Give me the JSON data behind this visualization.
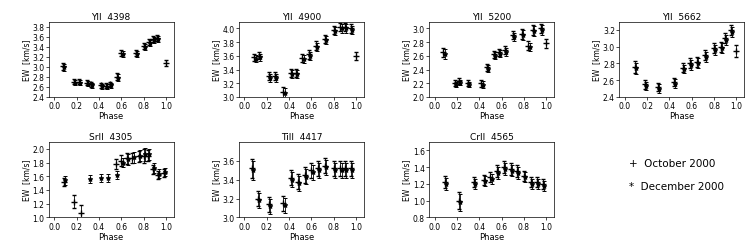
{
  "panels": [
    {
      "title": "YII  4398",
      "ylim": [
        2.4,
        3.9
      ],
      "yticks": [
        2.4,
        2.6,
        2.8,
        3.0,
        3.2,
        3.4,
        3.6,
        3.8
      ],
      "oct_phase": [
        0.08,
        0.18,
        0.22,
        0.29,
        0.33,
        0.42,
        0.46,
        0.5,
        0.56,
        0.6,
        0.73,
        0.8,
        0.85,
        0.88,
        0.92,
        1.0
      ],
      "oct_ew": [
        3.01,
        2.7,
        2.7,
        2.68,
        2.65,
        2.63,
        2.62,
        2.65,
        2.8,
        3.28,
        3.28,
        3.42,
        3.5,
        3.55,
        3.58,
        3.08
      ],
      "oct_err": [
        0.07,
        0.05,
        0.05,
        0.05,
        0.05,
        0.05,
        0.05,
        0.05,
        0.07,
        0.06,
        0.06,
        0.06,
        0.06,
        0.06,
        0.06,
        0.06
      ],
      "dec_phase": [
        0.09,
        0.19,
        0.23,
        0.3,
        0.34,
        0.43,
        0.47,
        0.51,
        0.57,
        0.62,
        0.74,
        0.81,
        0.86,
        0.89,
        0.93
      ],
      "dec_ew": [
        2.99,
        2.68,
        2.68,
        2.66,
        2.63,
        2.61,
        2.6,
        2.63,
        2.78,
        3.25,
        3.25,
        3.4,
        3.48,
        3.53,
        3.56
      ],
      "dec_err": [
        0.07,
        0.05,
        0.05,
        0.05,
        0.05,
        0.05,
        0.05,
        0.05,
        0.07,
        0.06,
        0.06,
        0.06,
        0.06,
        0.06,
        0.06
      ]
    },
    {
      "title": "YII  4900",
      "ylim": [
        3.0,
        4.1
      ],
      "yticks": [
        3.0,
        3.2,
        3.4,
        3.6,
        3.8,
        4.0
      ],
      "oct_phase": [
        0.09,
        0.13,
        0.22,
        0.27,
        0.35,
        0.42,
        0.46,
        0.52,
        0.58,
        0.64,
        0.72,
        0.8,
        0.86,
        0.9,
        0.95,
        1.0
      ],
      "oct_ew": [
        3.58,
        3.6,
        3.3,
        3.3,
        3.07,
        3.35,
        3.35,
        3.57,
        3.62,
        3.75,
        3.85,
        3.98,
        4.02,
        4.02,
        4.0,
        3.6
      ],
      "oct_err": [
        0.05,
        0.05,
        0.06,
        0.06,
        0.08,
        0.06,
        0.06,
        0.06,
        0.06,
        0.06,
        0.06,
        0.06,
        0.06,
        0.06,
        0.06,
        0.06
      ],
      "dec_phase": [
        0.1,
        0.14,
        0.23,
        0.28,
        0.36,
        0.43,
        0.47,
        0.53,
        0.59,
        0.65,
        0.73,
        0.81,
        0.87,
        0.91,
        0.96
      ],
      "dec_ew": [
        3.56,
        3.58,
        3.28,
        3.28,
        3.05,
        3.33,
        3.33,
        3.55,
        3.6,
        3.73,
        3.83,
        3.96,
        4.0,
        4.0,
        3.98
      ],
      "dec_err": [
        0.05,
        0.05,
        0.06,
        0.06,
        0.08,
        0.06,
        0.06,
        0.06,
        0.06,
        0.06,
        0.06,
        0.06,
        0.06,
        0.06,
        0.06
      ]
    },
    {
      "title": "YII  5200",
      "ylim": [
        2.0,
        3.1
      ],
      "yticks": [
        2.0,
        2.2,
        2.4,
        2.6,
        2.8,
        3.0
      ],
      "oct_phase": [
        0.08,
        0.18,
        0.22,
        0.3,
        0.42,
        0.47,
        0.53,
        0.58,
        0.63,
        0.7,
        0.78,
        0.84,
        0.88,
        0.95,
        1.0
      ],
      "oct_ew": [
        2.65,
        2.2,
        2.23,
        2.2,
        2.2,
        2.43,
        2.62,
        2.65,
        2.68,
        2.9,
        2.92,
        2.75,
        2.98,
        3.0,
        2.78
      ],
      "oct_err": [
        0.07,
        0.04,
        0.04,
        0.04,
        0.05,
        0.05,
        0.05,
        0.05,
        0.06,
        0.06,
        0.07,
        0.06,
        0.07,
        0.07,
        0.06
      ],
      "dec_phase": [
        0.09,
        0.19,
        0.23,
        0.31,
        0.43,
        0.48,
        0.54,
        0.59,
        0.64,
        0.71,
        0.79,
        0.85,
        0.89,
        0.96
      ],
      "dec_ew": [
        2.63,
        2.18,
        2.21,
        2.18,
        2.18,
        2.41,
        2.6,
        2.63,
        2.66,
        2.88,
        2.9,
        2.73,
        2.96,
        2.98
      ],
      "dec_err": [
        0.07,
        0.04,
        0.04,
        0.04,
        0.05,
        0.05,
        0.05,
        0.05,
        0.06,
        0.06,
        0.07,
        0.06,
        0.07,
        0.07
      ]
    },
    {
      "title": "YII  5662",
      "ylim": [
        2.4,
        3.3
      ],
      "yticks": [
        2.4,
        2.6,
        2.8,
        3.0,
        3.2
      ],
      "oct_phase": [
        0.09,
        0.18,
        0.3,
        0.44,
        0.52,
        0.58,
        0.65,
        0.72,
        0.8,
        0.86,
        0.9,
        0.95,
        1.0
      ],
      "oct_ew": [
        2.76,
        2.55,
        2.52,
        2.58,
        2.75,
        2.8,
        2.82,
        2.9,
        2.98,
        3.0,
        3.1,
        3.2,
        2.95
      ],
      "oct_err": [
        0.07,
        0.05,
        0.05,
        0.05,
        0.05,
        0.06,
        0.06,
        0.06,
        0.06,
        0.06,
        0.06,
        0.06,
        0.07
      ],
      "dec_phase": [
        0.1,
        0.19,
        0.31,
        0.45,
        0.53,
        0.59,
        0.66,
        0.73,
        0.81,
        0.87,
        0.91,
        0.96
      ],
      "dec_ew": [
        2.74,
        2.53,
        2.5,
        2.56,
        2.73,
        2.78,
        2.8,
        2.88,
        2.96,
        2.98,
        3.08,
        3.18
      ],
      "dec_err": [
        0.07,
        0.05,
        0.05,
        0.05,
        0.05,
        0.06,
        0.06,
        0.06,
        0.06,
        0.06,
        0.06,
        0.06
      ]
    },
    {
      "title": "SrII  4305",
      "ylim": [
        1.0,
        2.1
      ],
      "yticks": [
        1.0,
        1.2,
        1.4,
        1.6,
        1.8,
        2.0
      ],
      "oct_phase": [
        0.09,
        0.18,
        0.24,
        0.55,
        0.6,
        0.65,
        0.7,
        0.76,
        0.8,
        0.84,
        0.88,
        0.93,
        0.98
      ],
      "oct_ew": [
        1.52,
        1.23,
        1.06,
        1.78,
        1.83,
        1.86,
        1.87,
        1.89,
        1.9,
        1.9,
        1.7,
        1.62,
        1.65
      ],
      "oct_err": [
        0.06,
        0.1,
        0.12,
        0.07,
        0.08,
        0.08,
        0.07,
        0.08,
        0.1,
        0.08,
        0.07,
        0.06,
        0.06
      ],
      "dec_phase": [
        0.1,
        0.32,
        0.42,
        0.48,
        0.56,
        0.62,
        0.66,
        0.71,
        0.77,
        0.81,
        0.85,
        0.89,
        0.94,
        0.99
      ],
      "dec_ew": [
        1.54,
        1.56,
        1.57,
        1.58,
        1.62,
        1.8,
        1.85,
        1.88,
        1.9,
        1.92,
        1.92,
        1.72,
        1.64,
        1.66
      ],
      "dec_err": [
        0.06,
        0.06,
        0.06,
        0.06,
        0.06,
        0.07,
        0.08,
        0.08,
        0.08,
        0.1,
        0.08,
        0.07,
        0.06,
        0.06
      ]
    },
    {
      "title": "TiII  4417",
      "ylim": [
        3.0,
        3.8
      ],
      "yticks": [
        3.0,
        3.2,
        3.4,
        3.6
      ],
      "oct_phase": [
        0.07,
        0.12,
        0.22,
        0.35,
        0.42,
        0.48,
        0.54,
        0.6,
        0.66,
        0.72,
        0.8,
        0.86,
        0.9,
        0.95
      ],
      "oct_ew": [
        3.52,
        3.2,
        3.14,
        3.15,
        3.42,
        3.38,
        3.45,
        3.5,
        3.52,
        3.55,
        3.52,
        3.52,
        3.52,
        3.52
      ],
      "oct_err": [
        0.1,
        0.08,
        0.08,
        0.08,
        0.08,
        0.08,
        0.08,
        0.08,
        0.08,
        0.08,
        0.08,
        0.08,
        0.08,
        0.08
      ],
      "dec_phase": [
        0.08,
        0.13,
        0.23,
        0.36,
        0.43,
        0.49,
        0.55,
        0.61,
        0.67,
        0.73,
        0.81,
        0.87,
        0.91,
        0.96
      ],
      "dec_ew": [
        3.5,
        3.18,
        3.12,
        3.13,
        3.4,
        3.36,
        3.43,
        3.48,
        3.5,
        3.53,
        3.5,
        3.5,
        3.5,
        3.5
      ],
      "dec_err": [
        0.1,
        0.08,
        0.08,
        0.08,
        0.08,
        0.08,
        0.08,
        0.08,
        0.08,
        0.08,
        0.08,
        0.08,
        0.08,
        0.08
      ]
    },
    {
      "title": "CrII  4565",
      "ylim": [
        0.8,
        1.7
      ],
      "yticks": [
        0.8,
        1.0,
        1.2,
        1.4,
        1.6
      ],
      "oct_phase": [
        0.09,
        0.22,
        0.35,
        0.44,
        0.5,
        0.56,
        0.62,
        0.68,
        0.74,
        0.8,
        0.86,
        0.92,
        0.97
      ],
      "oct_ew": [
        1.22,
        1.0,
        1.22,
        1.25,
        1.28,
        1.35,
        1.4,
        1.38,
        1.35,
        1.3,
        1.22,
        1.22,
        1.2
      ],
      "oct_err": [
        0.07,
        0.1,
        0.06,
        0.06,
        0.06,
        0.07,
        0.07,
        0.07,
        0.07,
        0.06,
        0.06,
        0.06,
        0.06
      ],
      "dec_phase": [
        0.1,
        0.23,
        0.36,
        0.45,
        0.51,
        0.57,
        0.63,
        0.69,
        0.75,
        0.81,
        0.87,
        0.93,
        0.98
      ],
      "dec_ew": [
        1.2,
        0.98,
        1.2,
        1.23,
        1.26,
        1.33,
        1.38,
        1.36,
        1.33,
        1.28,
        1.2,
        1.2,
        1.18
      ],
      "dec_err": [
        0.07,
        0.1,
        0.06,
        0.06,
        0.06,
        0.07,
        0.07,
        0.07,
        0.07,
        0.06,
        0.06,
        0.06,
        0.06
      ]
    }
  ],
  "xlabel": "Phase",
  "ylabel": "EW  [km/s]",
  "oct_label": "+  October 2000",
  "dec_label": "*  December 2000",
  "color": "black",
  "xticks": [
    0.0,
    0.2,
    0.4,
    0.6,
    0.8,
    1.0
  ],
  "xtick_labels": [
    "0.0",
    "0.2",
    "0.4",
    "0.6",
    "0.8",
    "1.0"
  ]
}
